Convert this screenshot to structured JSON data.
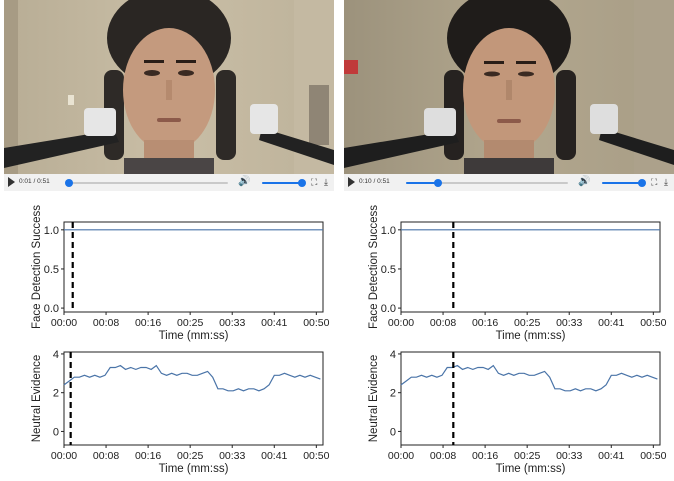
{
  "panels": [
    {
      "id": "left",
      "player": {
        "time_display": "0:01 / 0:51",
        "progress": 0.02,
        "volume": 1.0
      },
      "face_chart": {
        "ylabel": "Face Detection Success",
        "xlabel": "Time (mm:ss)",
        "yticks": [
          "0.0",
          "0.5",
          "1.0"
        ],
        "xticks": [
          "00:00",
          "00:08",
          "00:16",
          "00:25",
          "00:33",
          "00:41",
          "00:50"
        ],
        "marker_seconds": 1.7
      },
      "neutral_chart": {
        "ylabel": "Neutral Evidence",
        "xlabel": "Time (mm:ss)",
        "yticks": [
          "0",
          "2",
          "4"
        ],
        "xticks": [
          "00:00",
          "00:08",
          "00:16",
          "00:25",
          "00:33",
          "00:41",
          "00:50"
        ],
        "marker_seconds": 1.3
      }
    },
    {
      "id": "right",
      "player": {
        "time_display": "0:10 / 0:51",
        "progress": 0.2,
        "volume": 1.0
      },
      "face_chart": {
        "ylabel": "Face Detection Success",
        "xlabel": "Time (mm:ss)",
        "yticks": [
          "0.0",
          "0.5",
          "1.0"
        ],
        "xticks": [
          "00:00",
          "00:08",
          "00:16",
          "00:25",
          "00:33",
          "00:41",
          "00:50"
        ],
        "marker_seconds": 10.2
      },
      "neutral_chart": {
        "ylabel": "Neutral Evidence",
        "xlabel": "Time (mm:ss)",
        "yticks": [
          "0",
          "2",
          "4"
        ],
        "xticks": [
          "00:00",
          "00:08",
          "00:16",
          "00:25",
          "00:33",
          "00:41",
          "00:50"
        ],
        "marker_seconds": 10.2
      }
    }
  ],
  "chart_data": [
    {
      "type": "line",
      "ylabel": "Face Detection Success",
      "xlabel": "Time (mm:ss)",
      "x_seconds": [
        0,
        50.5
      ],
      "series": [
        {
          "values": [
            1.0,
            1.0
          ]
        }
      ],
      "ylim": [
        -0.05,
        1.1
      ],
      "xlim_seconds": [
        0,
        50.5
      ],
      "grid": false
    },
    {
      "type": "line",
      "ylabel": "Neutral Evidence",
      "xlabel": "Time (mm:ss)",
      "x_seconds": [
        0,
        1,
        2,
        3,
        4,
        5,
        6,
        7,
        8,
        9,
        10,
        11,
        12,
        13,
        14,
        15,
        16,
        17,
        18,
        19,
        20,
        21,
        22,
        23,
        24,
        25,
        26,
        27,
        28,
        29,
        30,
        31,
        32,
        33,
        34,
        35,
        36,
        37,
        38,
        39,
        40,
        41,
        42,
        43,
        44,
        45,
        46,
        47,
        48,
        49,
        50
      ],
      "series": [
        {
          "values": [
            2.4,
            2.6,
            2.8,
            2.8,
            2.9,
            2.8,
            2.9,
            2.8,
            2.9,
            3.3,
            3.3,
            3.4,
            3.2,
            3.3,
            3.2,
            3.3,
            3.3,
            3.2,
            3.4,
            3.0,
            2.9,
            3.0,
            2.9,
            3.0,
            3.0,
            2.9,
            2.9,
            3.0,
            3.1,
            2.8,
            2.2,
            2.2,
            2.1,
            2.1,
            2.2,
            2.1,
            2.2,
            2.2,
            2.1,
            2.2,
            2.4,
            2.9,
            2.9,
            3.0,
            2.9,
            2.8,
            2.9,
            2.8,
            2.9,
            2.8,
            2.7
          ]
        }
      ],
      "ylim": [
        -0.7,
        4.1
      ],
      "xlim_seconds": [
        0,
        50.5
      ],
      "grid": false
    }
  ],
  "colors": {
    "series": "#4a74a8",
    "marker": "#000000",
    "accent": "#1a73e8",
    "controls_bg": "#f1f1f1"
  },
  "icons": {
    "play": "play-icon",
    "volume": "volume-icon",
    "fullscreen": "fullscreen-icon",
    "download": "download-icon"
  }
}
